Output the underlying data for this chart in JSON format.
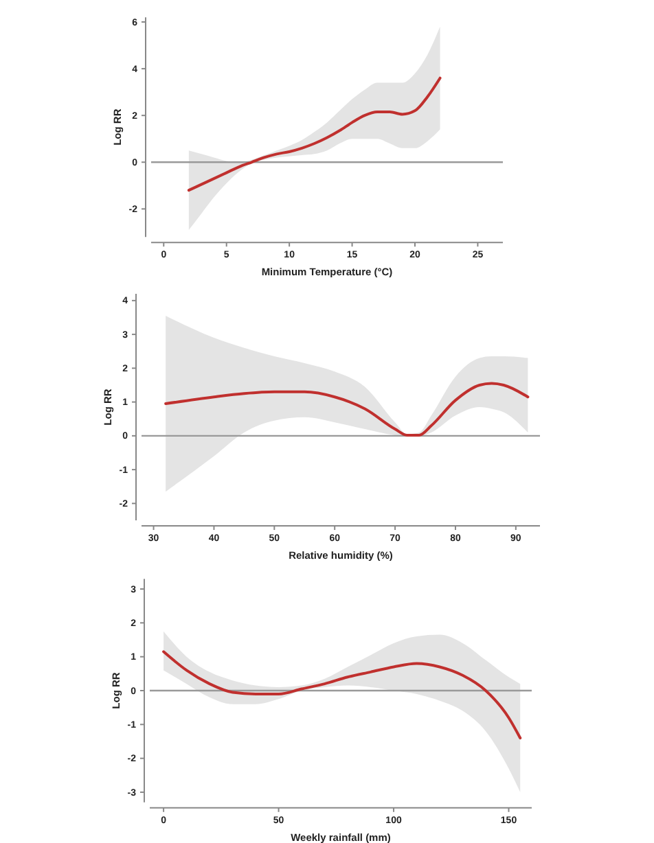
{
  "chart_data": [
    {
      "type": "line",
      "xlabel": "Minimum Temperature (°C)",
      "ylabel": "Log RR",
      "x": [
        2,
        3,
        4,
        5,
        6,
        7,
        8,
        9,
        10,
        11,
        12,
        13,
        14,
        15,
        16,
        17,
        18,
        19,
        20,
        21,
        22
      ],
      "series": [
        {
          "color": "#c0302e",
          "values": [
            -1.2,
            -0.95,
            -0.7,
            -0.45,
            -0.2,
            0,
            0.2,
            0.35,
            0.45,
            0.6,
            0.8,
            1.05,
            1.35,
            1.7,
            2.0,
            2.15,
            2.15,
            2.05,
            2.2,
            2.8,
            3.6
          ],
          "lower": [
            -2.9,
            -2.2,
            -1.5,
            -0.9,
            -0.4,
            -0.05,
            0.1,
            0.2,
            0.25,
            0.3,
            0.35,
            0.5,
            0.8,
            1.0,
            1.0,
            1.0,
            0.8,
            0.6,
            0.6,
            0.9,
            1.4
          ],
          "upper": [
            0.5,
            0.35,
            0.2,
            0.05,
            0,
            0.1,
            0.3,
            0.5,
            0.7,
            0.95,
            1.3,
            1.7,
            2.2,
            2.7,
            3.1,
            3.4,
            3.4,
            3.4,
            3.8,
            4.6,
            5.8
          ]
        }
      ],
      "xlim": [
        -1,
        27
      ],
      "ylim": [
        -3.2,
        6.2
      ],
      "xticks": [
        0,
        5,
        10,
        15,
        20,
        25
      ],
      "yticks": [
        -2,
        0,
        2,
        4,
        6
      ],
      "ref_lines": [
        {
          "axis": "y",
          "value": 0,
          "color": "#999999"
        }
      ]
    },
    {
      "type": "line",
      "xlabel": "Relative humidity (%)",
      "ylabel": "Log RR",
      "x": [
        32,
        40,
        45,
        50,
        55,
        60,
        65,
        70,
        72,
        74,
        76,
        80,
        84,
        86,
        88,
        92
      ],
      "series": [
        {
          "color": "#c0302e",
          "values": [
            0.95,
            1.15,
            1.25,
            1.3,
            1.3,
            1.15,
            0.8,
            0.2,
            0.02,
            0.02,
            0.3,
            1.05,
            1.5,
            1.55,
            1.5,
            1.15
          ],
          "lower": [
            -1.65,
            -0.6,
            0.1,
            0.45,
            0.55,
            0.4,
            0.2,
            0.02,
            0,
            0,
            0.1,
            0.6,
            0.85,
            0.8,
            0.7,
            0.1
          ],
          "upper": [
            3.55,
            2.9,
            2.6,
            2.35,
            2.15,
            1.9,
            1.45,
            0.4,
            0.05,
            0.1,
            0.6,
            1.75,
            2.3,
            2.35,
            2.35,
            2.3
          ]
        }
      ],
      "xlim": [
        28,
        94
      ],
      "ylim": [
        -2.5,
        4.2
      ],
      "xticks": [
        30,
        40,
        50,
        60,
        70,
        80,
        90
      ],
      "yticks": [
        -2,
        -1,
        0,
        1,
        2,
        3,
        4
      ],
      "ref_lines": [
        {
          "axis": "y",
          "value": 0,
          "color": "#999999"
        }
      ]
    },
    {
      "type": "line",
      "xlabel": "Weekly rainfall (mm)",
      "ylabel": "Log RR",
      "x": [
        0,
        10,
        20,
        30,
        40,
        50,
        60,
        70,
        80,
        90,
        100,
        110,
        120,
        130,
        140,
        150,
        155
      ],
      "series": [
        {
          "color": "#c0302e",
          "values": [
            1.15,
            0.6,
            0.2,
            -0.05,
            -0.1,
            -0.1,
            0.05,
            0.2,
            0.4,
            0.55,
            0.7,
            0.8,
            0.7,
            0.45,
            0,
            -0.8,
            -1.4
          ],
          "lower": [
            0.6,
            0.2,
            -0.2,
            -0.4,
            -0.4,
            -0.25,
            0,
            0.1,
            0.15,
            0.1,
            0,
            -0.1,
            -0.3,
            -0.6,
            -1.2,
            -2.3,
            -3.0
          ],
          "upper": [
            1.75,
            1.0,
            0.55,
            0.3,
            0.15,
            0.1,
            0.15,
            0.35,
            0.7,
            1.05,
            1.4,
            1.6,
            1.65,
            1.4,
            0.9,
            0.4,
            0.2
          ]
        }
      ],
      "xlim": [
        -6,
        160
      ],
      "ylim": [
        -3.3,
        3.3
      ],
      "xticks": [
        0,
        50,
        100,
        150
      ],
      "yticks": [
        -3,
        -2,
        -1,
        0,
        1,
        2,
        3
      ],
      "ref_lines": [
        {
          "axis": "y",
          "value": 0,
          "color": "#999999"
        }
      ]
    }
  ]
}
